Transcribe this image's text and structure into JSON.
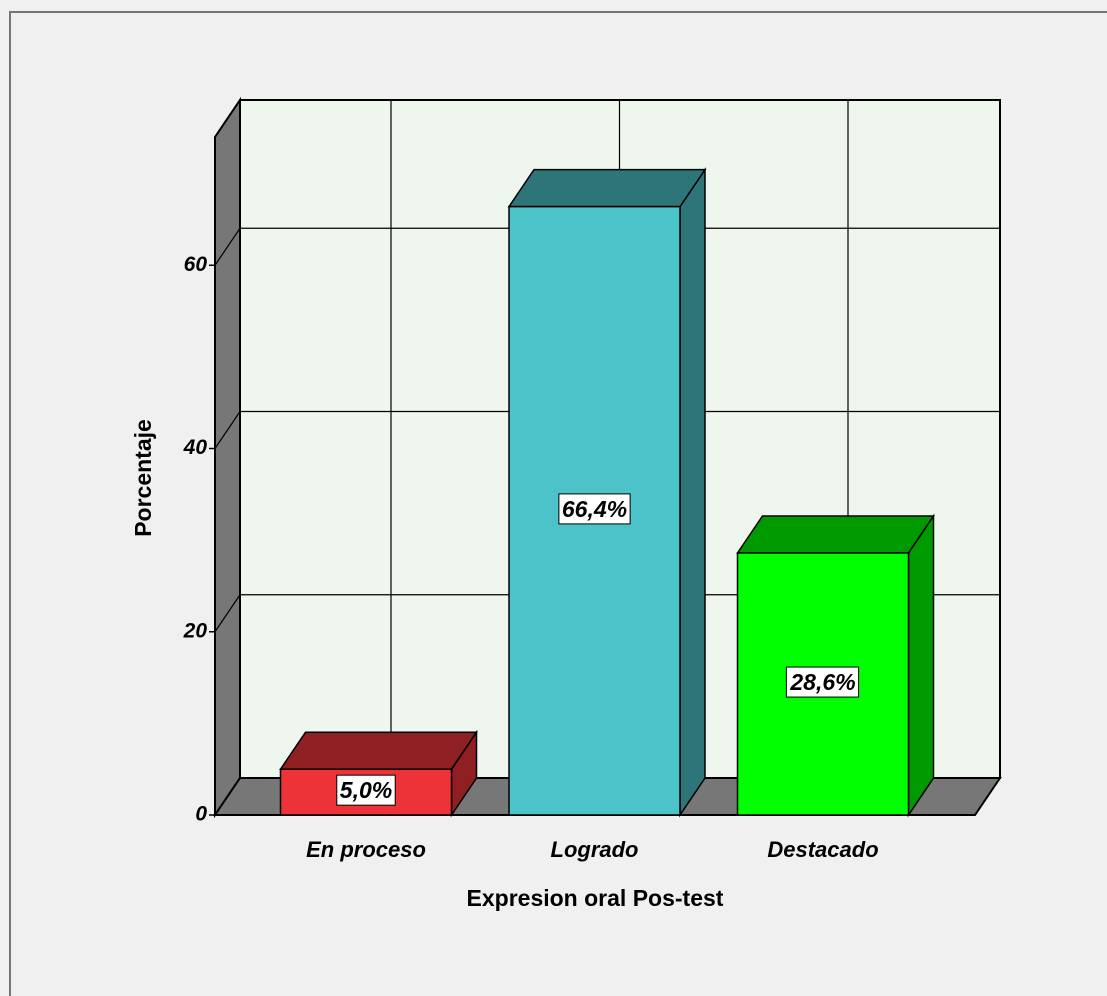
{
  "chart_data": {
    "type": "bar3d",
    "categories": [
      "En proceso",
      "Logrado",
      "Destacado"
    ],
    "values": [
      5.0,
      66.4,
      28.6
    ],
    "value_labels": [
      "5,0%",
      "66,4%",
      "28,6%"
    ],
    "colors": [
      "#ee3338",
      "#4bc3c8",
      "#00ff00"
    ],
    "x_label": "Expresion oral Pos-test",
    "y_label": "Porcentaje",
    "ylim": [
      0,
      74
    ],
    "yticks": [
      0,
      20,
      40,
      60
    ],
    "grid": true
  }
}
